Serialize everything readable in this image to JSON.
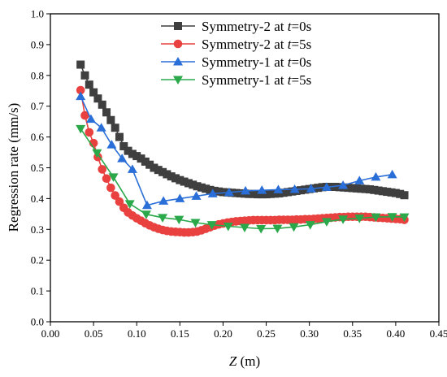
{
  "chart_data": {
    "type": "line",
    "xlabel": {
      "italic": "Z",
      "unit": " (m)"
    },
    "ylabel": "Regression rate (mm/s)",
    "xlim": [
      0.0,
      0.45
    ],
    "ylim": [
      0.0,
      1.0
    ],
    "xticks": [
      "0.00",
      "0.05",
      "0.10",
      "0.15",
      "0.20",
      "0.25",
      "0.30",
      "0.35",
      "0.40",
      "0.45"
    ],
    "yticks": [
      "0.0",
      "0.1",
      "0.2",
      "0.3",
      "0.4",
      "0.5",
      "0.6",
      "0.7",
      "0.8",
      "0.9",
      "1.0"
    ],
    "grid": false,
    "legend_position": "top-center",
    "series": [
      {
        "legend_prefix": "Symmetry-2 at ",
        "legend_var": "t",
        "legend_suffix": "=0s",
        "color": "#3f3f3f",
        "marker": "square",
        "x": [
          0.035,
          0.04,
          0.045,
          0.05,
          0.055,
          0.06,
          0.065,
          0.07,
          0.075,
          0.08,
          0.085,
          0.09,
          0.095,
          0.1,
          0.105,
          0.11,
          0.115,
          0.12,
          0.125,
          0.13,
          0.135,
          0.14,
          0.145,
          0.15,
          0.155,
          0.16,
          0.165,
          0.17,
          0.175,
          0.18,
          0.185,
          0.19,
          0.195,
          0.2,
          0.205,
          0.21,
          0.215,
          0.22,
          0.225,
          0.23,
          0.235,
          0.24,
          0.245,
          0.25,
          0.255,
          0.26,
          0.265,
          0.27,
          0.275,
          0.28,
          0.285,
          0.29,
          0.295,
          0.3,
          0.305,
          0.31,
          0.315,
          0.32,
          0.325,
          0.33,
          0.335,
          0.34,
          0.345,
          0.35,
          0.355,
          0.36,
          0.365,
          0.37,
          0.375,
          0.38,
          0.385,
          0.39,
          0.395,
          0.4,
          0.405,
          0.41
        ],
        "y": [
          0.835,
          0.8,
          0.77,
          0.745,
          0.725,
          0.705,
          0.68,
          0.655,
          0.63,
          0.6,
          0.57,
          0.555,
          0.545,
          0.538,
          0.53,
          0.52,
          0.51,
          0.5,
          0.493,
          0.486,
          0.479,
          0.472,
          0.466,
          0.46,
          0.455,
          0.45,
          0.445,
          0.44,
          0.436,
          0.432,
          0.428,
          0.425,
          0.423,
          0.421,
          0.42,
          0.419,
          0.418,
          0.417,
          0.416,
          0.415,
          0.415,
          0.414,
          0.414,
          0.414,
          0.415,
          0.416,
          0.417,
          0.419,
          0.421,
          0.423,
          0.425,
          0.427,
          0.429,
          0.431,
          0.433,
          0.435,
          0.437,
          0.438,
          0.438,
          0.438,
          0.437,
          0.436,
          0.435,
          0.434,
          0.433,
          0.432,
          0.431,
          0.43,
          0.428,
          0.426,
          0.424,
          0.422,
          0.42,
          0.418,
          0.415,
          0.411
        ]
      },
      {
        "legend_prefix": "Symmetry-2 at ",
        "legend_var": "t",
        "legend_suffix": "=5s",
        "color": "#e8413f",
        "marker": "circle",
        "x": [
          0.035,
          0.04,
          0.045,
          0.05,
          0.055,
          0.06,
          0.065,
          0.07,
          0.075,
          0.08,
          0.085,
          0.09,
          0.095,
          0.1,
          0.105,
          0.11,
          0.115,
          0.12,
          0.125,
          0.13,
          0.135,
          0.14,
          0.145,
          0.15,
          0.155,
          0.16,
          0.165,
          0.17,
          0.175,
          0.18,
          0.185,
          0.19,
          0.195,
          0.2,
          0.205,
          0.21,
          0.215,
          0.22,
          0.225,
          0.23,
          0.235,
          0.24,
          0.245,
          0.25,
          0.255,
          0.26,
          0.265,
          0.27,
          0.275,
          0.28,
          0.285,
          0.29,
          0.295,
          0.3,
          0.305,
          0.31,
          0.315,
          0.32,
          0.325,
          0.33,
          0.335,
          0.34,
          0.345,
          0.35,
          0.355,
          0.36,
          0.365,
          0.37,
          0.375,
          0.38,
          0.385,
          0.39,
          0.395,
          0.4,
          0.405,
          0.41
        ],
        "y": [
          0.752,
          0.67,
          0.615,
          0.58,
          0.535,
          0.495,
          0.465,
          0.435,
          0.41,
          0.39,
          0.37,
          0.355,
          0.345,
          0.336,
          0.328,
          0.32,
          0.313,
          0.307,
          0.302,
          0.298,
          0.295,
          0.293,
          0.292,
          0.291,
          0.29,
          0.29,
          0.291,
          0.293,
          0.297,
          0.302,
          0.307,
          0.312,
          0.316,
          0.319,
          0.322,
          0.324,
          0.326,
          0.327,
          0.328,
          0.329,
          0.33,
          0.33,
          0.33,
          0.33,
          0.33,
          0.33,
          0.331,
          0.331,
          0.331,
          0.331,
          0.332,
          0.332,
          0.333,
          0.333,
          0.334,
          0.335,
          0.336,
          0.337,
          0.338,
          0.339,
          0.34,
          0.34,
          0.341,
          0.341,
          0.341,
          0.341,
          0.341,
          0.34,
          0.339,
          0.338,
          0.337,
          0.336,
          0.335,
          0.334,
          0.333,
          0.331
        ]
      },
      {
        "legend_prefix": "Symmetry-1 at ",
        "legend_var": "t",
        "legend_suffix": "=0s",
        "color": "#2a6ed8",
        "marker": "triangle-up",
        "x": [
          0.035,
          0.047,
          0.059,
          0.071,
          0.083,
          0.095,
          0.112,
          0.131,
          0.15,
          0.169,
          0.188,
          0.207,
          0.226,
          0.245,
          0.264,
          0.283,
          0.302,
          0.32,
          0.339,
          0.358,
          0.377,
          0.396
        ],
        "y": [
          0.732,
          0.658,
          0.63,
          0.575,
          0.53,
          0.495,
          0.378,
          0.392,
          0.4,
          0.408,
          0.416,
          0.42,
          0.425,
          0.427,
          0.429,
          0.43,
          0.432,
          0.437,
          0.443,
          0.458,
          0.47,
          0.478
        ]
      },
      {
        "legend_prefix": "Symmetry-1 at ",
        "legend_var": "t",
        "legend_suffix": "=5s",
        "color": "#2aa84a",
        "marker": "triangle-down",
        "x": [
          0.035,
          0.054,
          0.073,
          0.092,
          0.111,
          0.13,
          0.149,
          0.168,
          0.187,
          0.206,
          0.225,
          0.244,
          0.263,
          0.282,
          0.301,
          0.32,
          0.339,
          0.358,
          0.377,
          0.396,
          0.41
        ],
        "y": [
          0.627,
          0.548,
          0.47,
          0.383,
          0.349,
          0.338,
          0.332,
          0.322,
          0.315,
          0.31,
          0.306,
          0.302,
          0.303,
          0.308,
          0.315,
          0.325,
          0.333,
          0.336,
          0.34,
          0.341,
          0.34
        ]
      }
    ]
  }
}
